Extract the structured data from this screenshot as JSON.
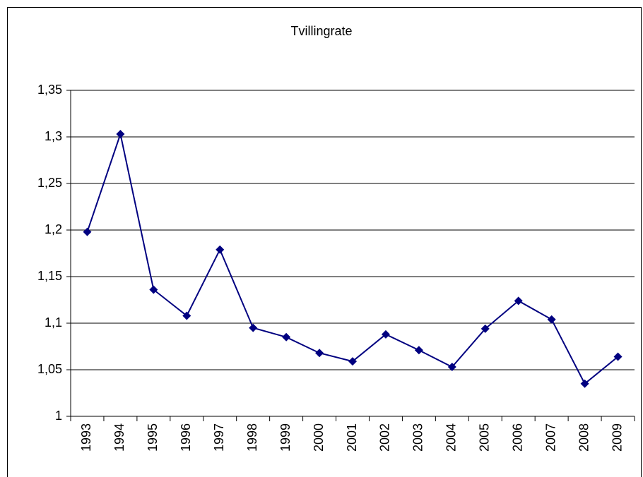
{
  "chart_data": {
    "type": "line",
    "title": "Tvillingrate",
    "categories": [
      "1993",
      "1994",
      "1995",
      "1996",
      "1997",
      "1998",
      "1999",
      "2000",
      "2001",
      "2002",
      "2003",
      "2004",
      "2005",
      "2006",
      "2007",
      "2008",
      "2009"
    ],
    "values": [
      1.198,
      1.303,
      1.136,
      1.108,
      1.179,
      1.095,
      1.085,
      1.068,
      1.059,
      1.088,
      1.071,
      1.053,
      1.094,
      1.124,
      1.104,
      1.035,
      1.064
    ],
    "color": "#000080",
    "ylim": [
      1,
      1.35
    ],
    "yticks": [
      1,
      {
        "value": 1.05,
        "label": "1,05"
      },
      {
        "value": 1.1,
        "label": "1,1"
      },
      {
        "value": 1.15,
        "label": "1,15"
      },
      {
        "value": 1.2,
        "label": "1,2"
      },
      {
        "value": 1.25,
        "label": "1,25"
      },
      {
        "value": 1.3,
        "label": "1,3"
      },
      {
        "value": 1.35,
        "label": "1,35"
      }
    ],
    "grid": true
  }
}
